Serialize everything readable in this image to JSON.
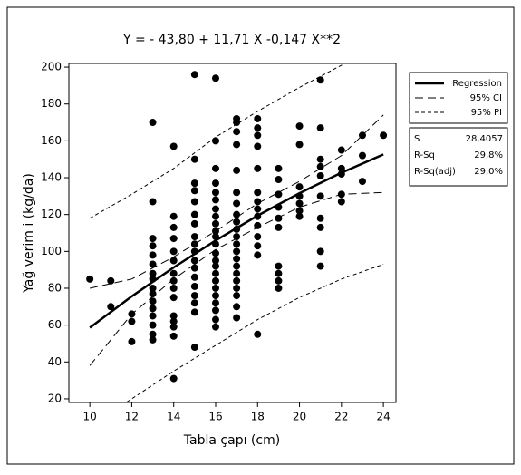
{
  "chart_data": {
    "type": "scatter",
    "title": "Y = - 43,80 + 11,71 X -0,147 X**2",
    "x_label": "Tabla çapı (cm)",
    "y_label": "Yağ verim i (kg/da)",
    "xlim": [
      9,
      24.6
    ],
    "ylim": [
      18,
      202
    ],
    "xticks": [
      10,
      12,
      14,
      16,
      18,
      20,
      22,
      24
    ],
    "yticks": [
      20,
      40,
      60,
      80,
      100,
      120,
      140,
      160,
      180,
      200
    ],
    "color": "#000000",
    "points": {
      "x": [
        10,
        11,
        11,
        12,
        12,
        12,
        13,
        13,
        13,
        13,
        13,
        13,
        13,
        13,
        13,
        13,
        13,
        13,
        13,
        13,
        13,
        13,
        14,
        14,
        14,
        14,
        14,
        14,
        14,
        14,
        14,
        14,
        14,
        14,
        14,
        14,
        14,
        15,
        15,
        15,
        15,
        15,
        15,
        15,
        15,
        15,
        15,
        15,
        15,
        15,
        15,
        15,
        15,
        15,
        15,
        16,
        16,
        16,
        16,
        16,
        16,
        16,
        16,
        16,
        16,
        16,
        16,
        16,
        16,
        16,
        16,
        16,
        16,
        16,
        16,
        16,
        16,
        16,
        17,
        17,
        17,
        17,
        17,
        17,
        17,
        17,
        17,
        17,
        17,
        17,
        17,
        17,
        17,
        17,
        17,
        17,
        17,
        17,
        17,
        18,
        18,
        18,
        18,
        18,
        18,
        18,
        18,
        18,
        18,
        18,
        18,
        18,
        18,
        19,
        19,
        19,
        19,
        19,
        19,
        19,
        19,
        19,
        19,
        20,
        20,
        20,
        20,
        20,
        20,
        20,
        21,
        21,
        21,
        21,
        21,
        21,
        21,
        21,
        21,
        21,
        22,
        22,
        22,
        22,
        22,
        23,
        23,
        23,
        24
      ],
      "y": [
        85,
        84,
        70,
        66,
        62,
        51,
        170,
        127,
        107,
        103,
        98,
        93,
        88,
        85,
        80,
        77,
        73,
        69,
        65,
        60,
        55,
        52,
        157,
        119,
        113,
        107,
        100,
        95,
        88,
        84,
        80,
        75,
        65,
        62,
        59,
        54,
        31,
        196,
        150,
        137,
        133,
        127,
        120,
        115,
        108,
        104,
        100,
        95,
        91,
        86,
        81,
        76,
        72,
        67,
        48,
        194,
        160,
        145,
        137,
        132,
        128,
        123,
        119,
        115,
        111,
        108,
        104,
        99,
        95,
        92,
        88,
        84,
        80,
        76,
        72,
        68,
        63,
        59,
        172,
        170,
        165,
        158,
        144,
        132,
        126,
        120,
        116,
        112,
        108,
        104,
        100,
        96,
        92,
        88,
        84,
        80,
        76,
        70,
        64,
        172,
        167,
        163,
        157,
        145,
        132,
        127,
        123,
        119,
        114,
        108,
        103,
        98,
        55,
        145,
        139,
        131,
        124,
        118,
        113,
        92,
        88,
        84,
        80,
        168,
        158,
        135,
        130,
        126,
        122,
        119,
        193,
        167,
        150,
        146,
        141,
        130,
        118,
        113,
        100,
        92,
        155,
        145,
        142,
        131,
        127,
        163,
        152,
        138,
        163
      ]
    },
    "curve_x": [
      10,
      12,
      14,
      16,
      18,
      20,
      22,
      24
    ],
    "fits": [
      {
        "name": "Regression",
        "style": "solid",
        "lines": [
          [
            58.6,
            75.6,
            91.3,
            105.9,
            119.4,
            131.6,
            142.7,
            152.6
          ]
        ]
      },
      {
        "name": "95% CI",
        "style": "dashed",
        "lines": [
          [
            80,
            85,
            97,
            111,
            126,
            138,
            152,
            174
          ],
          [
            38,
            66,
            85,
            101,
            113,
            124,
            131,
            132
          ]
        ]
      },
      {
        "name": "95% PI",
        "style": "dotted",
        "lines": [
          [
            118,
            131,
            145,
            162,
            176,
            189,
            201,
            214
          ],
          [
            5,
            20,
            35,
            49,
            63,
            75,
            85,
            93
          ]
        ]
      }
    ],
    "stats": [
      [
        "S",
        "28,4057"
      ],
      [
        "R-Sq",
        "29,8%"
      ],
      [
        "R-Sq(adj)",
        "29,0%"
      ]
    ]
  }
}
